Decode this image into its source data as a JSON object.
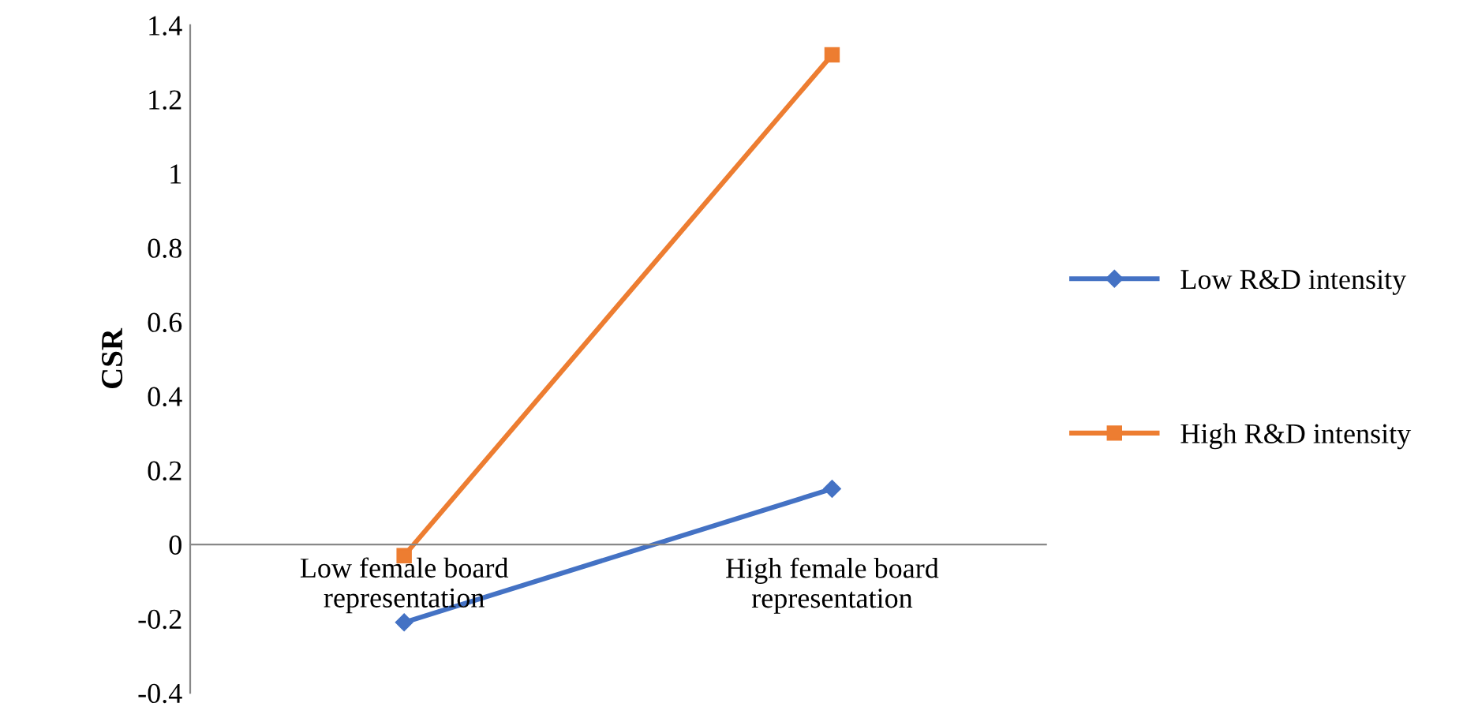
{
  "chart_data": {
    "type": "line",
    "ylabel": "CSR",
    "categories": [
      "Low female board\nrepresentation",
      "High female board\nrepresentation"
    ],
    "series": [
      {
        "name": "Low R&D intensity",
        "color": "#4472c4",
        "marker": "diamond",
        "values": [
          -0.21,
          0.15
        ]
      },
      {
        "name": "High R&D intensity",
        "color": "#ed7d31",
        "marker": "square",
        "values": [
          -0.03,
          1.32
        ]
      }
    ],
    "ylim": [
      -0.4,
      1.4
    ],
    "yticks": [
      {
        "value": -0.4,
        "label": "-0.4"
      },
      {
        "value": -0.2,
        "label": "-0.2"
      },
      0,
      0.2,
      0.4,
      0.6,
      0.8,
      1,
      1.2,
      1.4
    ],
    "grid": false,
    "legend": "right",
    "line_style": "solid"
  }
}
